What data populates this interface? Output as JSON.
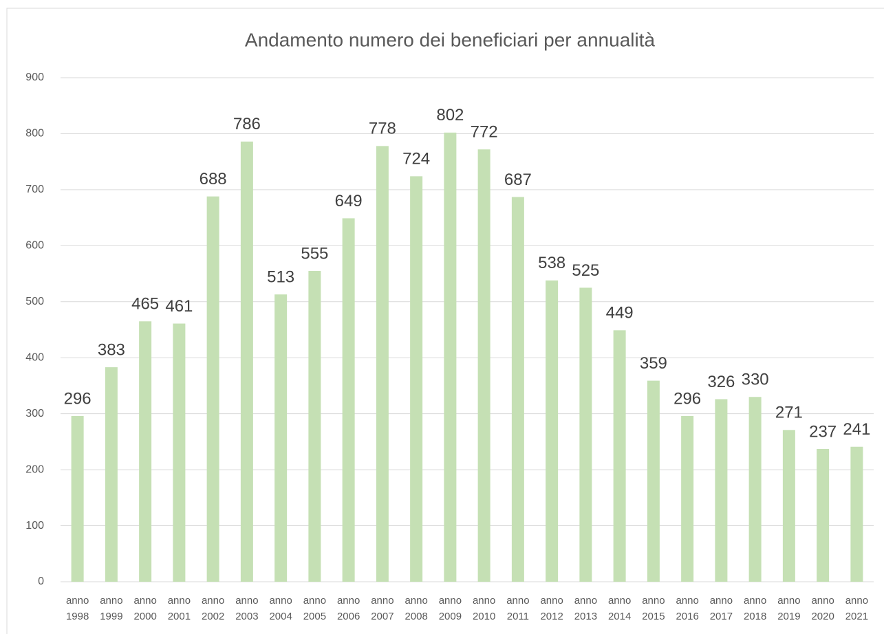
{
  "chart_data": {
    "type": "bar",
    "title": "Andamento numero dei beneficiari per annualità",
    "categories": [
      "anno 1998",
      "anno 1999",
      "anno 2000",
      "anno 2001",
      "anno 2002",
      "anno 2003",
      "anno 2004",
      "anno 2005",
      "anno 2006",
      "anno 2007",
      "anno 2008",
      "anno 2009",
      "anno 2010",
      "anno 2011",
      "anno 2012",
      "anno 2013",
      "anno 2014",
      "anno 2015",
      "anno 2016",
      "anno 2017",
      "anno 2018",
      "anno 2019",
      "anno 2020",
      "anno 2021"
    ],
    "values": [
      296,
      383,
      465,
      461,
      688,
      786,
      513,
      555,
      649,
      778,
      724,
      802,
      772,
      687,
      538,
      525,
      449,
      359,
      296,
      326,
      330,
      271,
      237,
      241
    ],
    "color": "#c5e0b4",
    "ylim": [
      0,
      900
    ],
    "yticks": [
      0,
      100,
      200,
      300,
      400,
      500,
      600,
      700,
      800,
      900
    ],
    "grid": true
  }
}
